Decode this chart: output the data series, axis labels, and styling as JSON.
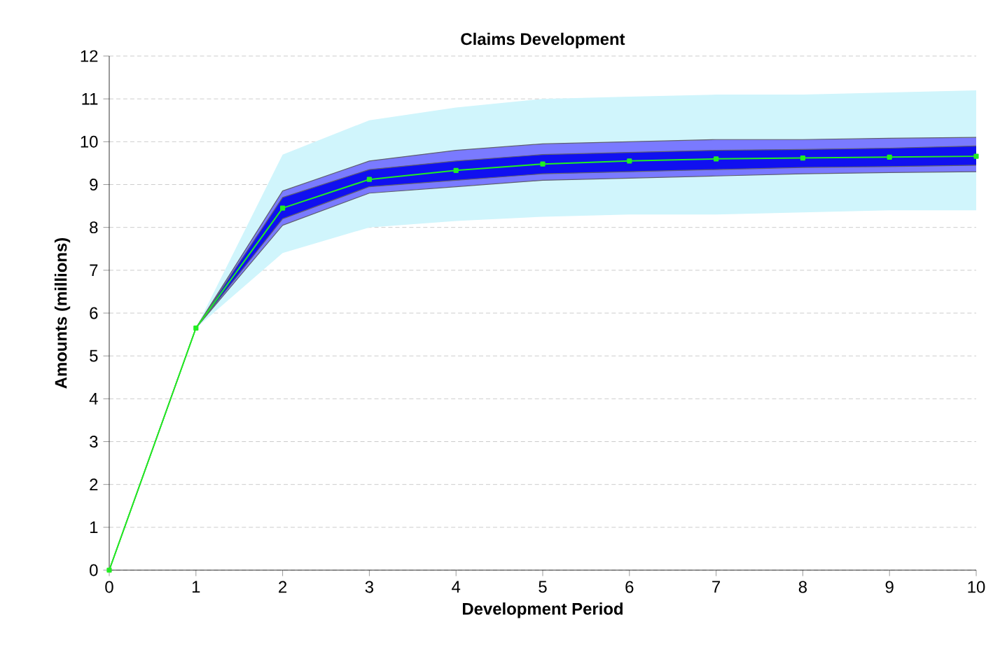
{
  "chart_data": {
    "type": "line",
    "title": "Claims Development",
    "xlabel": "Development Period",
    "ylabel": "Amounts (millions)",
    "x": [
      0,
      1,
      2,
      3,
      4,
      5,
      6,
      7,
      8,
      9,
      10
    ],
    "xlim": [
      0,
      10
    ],
    "ylim": [
      0,
      12
    ],
    "xticks": [
      0,
      1,
      2,
      3,
      4,
      5,
      6,
      7,
      8,
      9,
      10
    ],
    "yticks": [
      0,
      1,
      2,
      3,
      4,
      5,
      6,
      7,
      8,
      9,
      10,
      11,
      12
    ],
    "grid": "y",
    "marker": "square",
    "series": [
      {
        "color": "#d0f5fc",
        "values": [
          null,
          null,
          null,
          null,
          null,
          null,
          null,
          null,
          null,
          null,
          null
        ],
        "lower": [
          0,
          5.65,
          7.4,
          8.0,
          8.15,
          8.25,
          8.3,
          8.3,
          8.35,
          8.4,
          8.4
        ],
        "upper": [
          0,
          5.65,
          9.7,
          10.5,
          10.8,
          11.0,
          11.05,
          11.1,
          11.1,
          11.15,
          11.2
        ]
      },
      {
        "color": "#7a7aff",
        "values": [
          null,
          null,
          null,
          null,
          null,
          null,
          null,
          null,
          null,
          null,
          null
        ],
        "lower": [
          0,
          5.65,
          8.05,
          8.8,
          8.95,
          9.1,
          9.15,
          9.2,
          9.25,
          9.28,
          9.3
        ],
        "upper": [
          0,
          5.65,
          8.85,
          9.55,
          9.8,
          9.95,
          10.0,
          10.05,
          10.05,
          10.08,
          10.1
        ]
      },
      {
        "color": "#1010f0",
        "values": [
          null,
          null,
          null,
          null,
          null,
          null,
          null,
          null,
          null,
          null,
          null
        ],
        "lower": [
          0,
          5.65,
          8.2,
          8.95,
          9.1,
          9.25,
          9.3,
          9.35,
          9.4,
          9.42,
          9.45
        ],
        "upper": [
          0,
          5.65,
          8.7,
          9.35,
          9.55,
          9.7,
          9.75,
          9.8,
          9.82,
          9.85,
          9.9
        ]
      },
      {
        "color": "#606070",
        "marker": "none",
        "values": [
          0,
          5.65,
          8.85,
          9.55,
          9.8,
          9.95,
          10.0,
          10.05,
          10.05,
          10.08,
          10.1
        ]
      },
      {
        "color": "#606070",
        "marker": "none",
        "values": [
          0,
          5.65,
          8.7,
          9.35,
          9.55,
          9.7,
          9.75,
          9.8,
          9.82,
          9.85,
          9.9
        ]
      },
      {
        "color": "#606070",
        "marker": "none",
        "values": [
          0,
          5.65,
          8.2,
          8.95,
          9.1,
          9.25,
          9.3,
          9.35,
          9.4,
          9.42,
          9.45
        ]
      },
      {
        "color": "#606070",
        "marker": "none",
        "values": [
          0,
          5.65,
          8.05,
          8.8,
          8.95,
          9.1,
          9.15,
          9.2,
          9.25,
          9.28,
          9.3
        ]
      },
      {
        "color": "#22ee22",
        "values": [
          0,
          5.65,
          8.45,
          9.12,
          9.33,
          9.48,
          9.55,
          9.6,
          9.62,
          9.64,
          9.66
        ]
      }
    ]
  }
}
